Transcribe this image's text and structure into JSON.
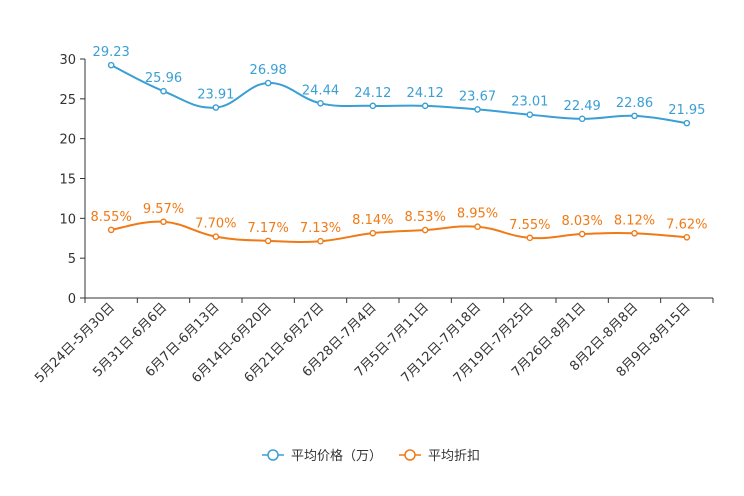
{
  "chart_data": {
    "type": "line",
    "title": "",
    "xlabel": "",
    "ylabel": "",
    "ylim": [
      0,
      30
    ],
    "yticks": [
      0,
      5,
      10,
      15,
      20,
      25,
      30
    ],
    "categories": [
      "5月24日-5月30日",
      "5月31日-6月6日",
      "6月7日-6月13日",
      "6月14日-6月20日",
      "6月21日-6月27日",
      "6月28日-7月4日",
      "7月5日-7月11日",
      "7月12日-7月18日",
      "7月19日-7月25日",
      "7月26日-8月1日",
      "8月2日-8月8日",
      "8月9日-8月15日"
    ],
    "series": [
      {
        "name": "平均价格（万）",
        "color": "#3a9fd4",
        "values": [
          29.23,
          25.96,
          23.91,
          26.98,
          24.44,
          24.12,
          24.12,
          23.67,
          23.01,
          22.49,
          22.86,
          21.95
        ],
        "labels": [
          "29.23",
          "25.96",
          "23.91",
          "26.98",
          "24.44",
          "24.12",
          "24.12",
          "23.67",
          "23.01",
          "22.49",
          "22.86",
          "21.95"
        ]
      },
      {
        "name": "平均折扣",
        "color": "#f07a16",
        "values": [
          8.55,
          9.57,
          7.7,
          7.17,
          7.13,
          8.14,
          8.53,
          8.95,
          7.55,
          8.03,
          8.12,
          7.62
        ],
        "labels": [
          "8.55%",
          "9.57%",
          "7.70%",
          "7.17%",
          "7.13%",
          "8.14%",
          "8.53%",
          "8.95%",
          "7.55%",
          "8.03%",
          "8.12%",
          "7.62%"
        ]
      }
    ],
    "legend_position": "bottom-center",
    "grid": false
  }
}
